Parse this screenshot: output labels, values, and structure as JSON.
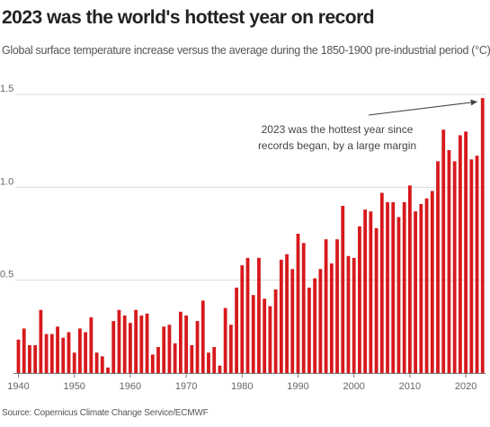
{
  "title": "2023 was the world's hottest year on record",
  "subtitle": "Global surface temperature increase versus the average during the 1850-1900 pre-industrial period (°C)",
  "source": "Source: Copernicus Climate Change Service/ECMWF",
  "colors": {
    "bar": "#d7191c",
    "grid": "#d9d9d9",
    "text": "#222222"
  },
  "chart_data": {
    "type": "bar",
    "title": "2023 was the world's hottest year on record",
    "xlabel": "",
    "ylabel": "",
    "ylim": [
      0,
      1.5
    ],
    "y_ticks": [
      "0.5",
      "1.0",
      "1.5"
    ],
    "y_tick_values": [
      0.5,
      1.0,
      1.5
    ],
    "x_ticks": [
      "1940",
      "1950",
      "1960",
      "1970",
      "1980",
      "1990",
      "2000",
      "2010",
      "2020"
    ],
    "x_tick_values": [
      1940,
      1950,
      1960,
      1970,
      1980,
      1990,
      2000,
      2010,
      2020
    ],
    "grid": true,
    "categories": [
      1940,
      1941,
      1942,
      1943,
      1944,
      1945,
      1946,
      1947,
      1948,
      1949,
      1950,
      1951,
      1952,
      1953,
      1954,
      1955,
      1956,
      1957,
      1958,
      1959,
      1960,
      1961,
      1962,
      1963,
      1964,
      1965,
      1966,
      1967,
      1968,
      1969,
      1970,
      1971,
      1972,
      1973,
      1974,
      1975,
      1976,
      1977,
      1978,
      1979,
      1980,
      1981,
      1982,
      1983,
      1984,
      1985,
      1986,
      1987,
      1988,
      1989,
      1990,
      1991,
      1992,
      1993,
      1994,
      1995,
      1996,
      1997,
      1998,
      1999,
      2000,
      2001,
      2002,
      2003,
      2004,
      2005,
      2006,
      2007,
      2008,
      2009,
      2010,
      2011,
      2012,
      2013,
      2014,
      2015,
      2016,
      2017,
      2018,
      2019,
      2020,
      2021,
      2022,
      2023
    ],
    "values": [
      0.18,
      0.24,
      0.15,
      0.15,
      0.34,
      0.21,
      0.21,
      0.25,
      0.19,
      0.22,
      0.11,
      0.24,
      0.22,
      0.3,
      0.11,
      0.09,
      0.03,
      0.28,
      0.34,
      0.31,
      0.27,
      0.34,
      0.31,
      0.32,
      0.1,
      0.14,
      0.25,
      0.26,
      0.16,
      0.33,
      0.31,
      0.15,
      0.28,
      0.39,
      0.11,
      0.14,
      0.04,
      0.35,
      0.26,
      0.46,
      0.58,
      0.62,
      0.42,
      0.62,
      0.4,
      0.36,
      0.45,
      0.61,
      0.64,
      0.56,
      0.75,
      0.7,
      0.46,
      0.51,
      0.56,
      0.72,
      0.59,
      0.72,
      0.9,
      0.63,
      0.62,
      0.79,
      0.88,
      0.87,
      0.78,
      0.97,
      0.92,
      0.92,
      0.84,
      0.92,
      1.01,
      0.87,
      0.91,
      0.94,
      0.98,
      1.14,
      1.31,
      1.2,
      1.14,
      1.28,
      1.3,
      1.15,
      1.17,
      1.48
    ],
    "annotation": {
      "lines": [
        "2023 was the hottest year since",
        "records began, by a large margin"
      ],
      "points_to": 2023
    }
  }
}
